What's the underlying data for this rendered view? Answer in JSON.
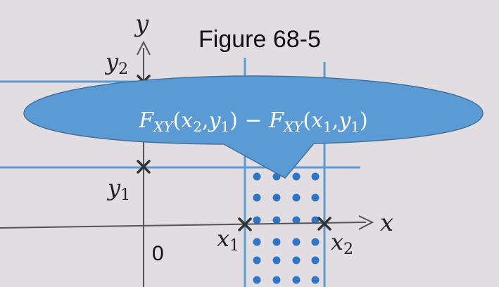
{
  "figure": {
    "title": "Figure 68-5",
    "axis_x_label": "x",
    "axis_y_label": "y",
    "origin_label": "0",
    "tick_labels": {
      "x1": {
        "base": "x",
        "sub": "1"
      },
      "x2": {
        "base": "x",
        "sub": "2"
      },
      "y1": {
        "base": "y",
        "sub": "1"
      },
      "y2": {
        "base": "y",
        "sub": "2"
      }
    },
    "callout_formula": "F_XY(x_2,y_1) − F_XY(x_1,y_1)",
    "callout_parts": {
      "f1": "F",
      "s1": "XY",
      "open1": "(",
      "a1": "x",
      "a1s": "2",
      "comma1": ",",
      "b1": "y",
      "b1s": "1",
      "close1": ")",
      "minus": " − ",
      "f2": "F",
      "s2": "XY",
      "open2": "(",
      "a2": "x",
      "a2s": "1",
      "comma2": ",",
      "b2": "y",
      "b2s": "1",
      "close2": ")"
    },
    "colors": {
      "region_lines": "#5b9bd5",
      "dots": "#2e75c8",
      "callout_fill": "#5b9bd5",
      "background": "#e2dde0"
    }
  }
}
